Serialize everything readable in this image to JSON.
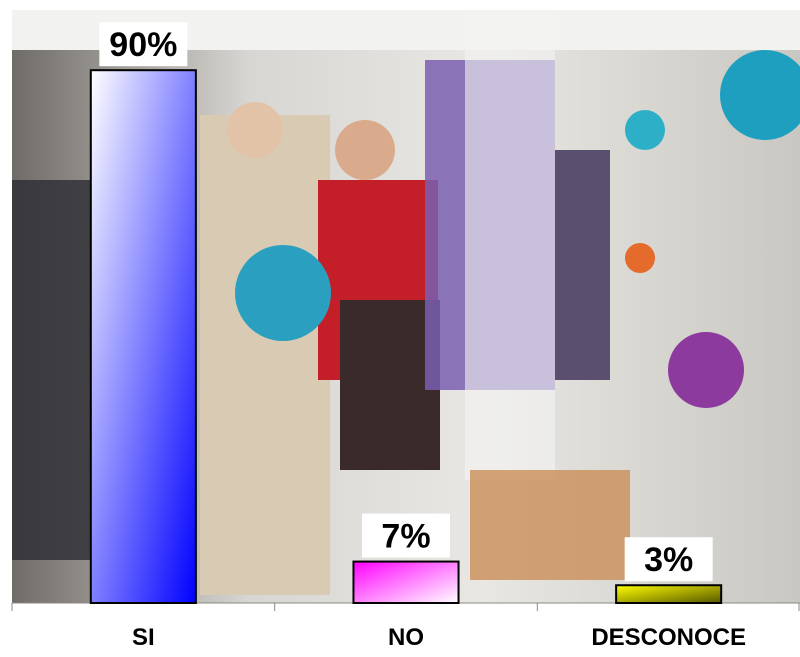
{
  "chart_data": {
    "type": "bar",
    "categories": [
      "SI",
      "NO",
      "DESCONOCE"
    ],
    "values": [
      90,
      7,
      3
    ],
    "value_labels": [
      "90%",
      "7%",
      "3%"
    ],
    "colors": [
      "#0000ff",
      "#ff00ff",
      "#ffff00"
    ],
    "ylim": [
      0,
      100
    ]
  }
}
